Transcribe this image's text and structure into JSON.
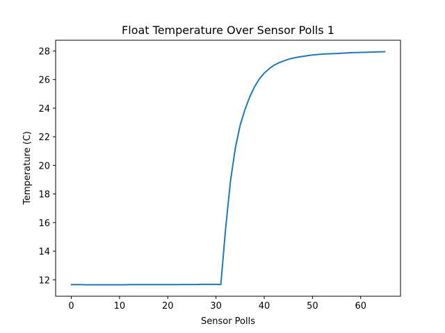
{
  "chart_data": {
    "type": "line",
    "title": "Float Temperature Over Sensor Polls 1",
    "xlabel": "Sensor Polls",
    "ylabel": "Temperature (C)",
    "xlim": [
      -3.25,
      68.25
    ],
    "ylim": [
      10.85,
      28.75
    ],
    "xticks": [
      0,
      10,
      20,
      30,
      40,
      50,
      60
    ],
    "yticks": [
      12,
      14,
      16,
      18,
      20,
      22,
      24,
      26,
      28
    ],
    "xtick_labels": [
      "0",
      "10",
      "20",
      "30",
      "40",
      "50",
      "60"
    ],
    "ytick_labels": [
      "12",
      "14",
      "16",
      "18",
      "20",
      "22",
      "24",
      "26",
      "28"
    ],
    "grid": false,
    "legend": "none",
    "series": [
      {
        "color": "#1f77b4",
        "x": [
          0,
          1,
          2,
          3,
          4,
          5,
          6,
          7,
          8,
          9,
          10,
          11,
          12,
          13,
          14,
          15,
          16,
          17,
          18,
          19,
          20,
          21,
          22,
          23,
          24,
          25,
          26,
          27,
          28,
          29,
          30,
          31,
          32,
          33,
          34,
          35,
          36,
          37,
          38,
          39,
          40,
          41,
          42,
          43,
          44,
          45,
          46,
          47,
          48,
          49,
          50,
          51,
          52,
          53,
          54,
          55,
          56,
          57,
          58,
          59,
          60,
          61,
          62,
          63,
          64,
          65
        ],
        "y": [
          11.66,
          11.66,
          11.66,
          11.65,
          11.65,
          11.65,
          11.65,
          11.65,
          11.65,
          11.65,
          11.65,
          11.65,
          11.66,
          11.66,
          11.66,
          11.66,
          11.66,
          11.66,
          11.66,
          11.66,
          11.66,
          11.66,
          11.66,
          11.67,
          11.67,
          11.67,
          11.67,
          11.68,
          11.68,
          11.68,
          11.68,
          11.67,
          15.6,
          18.9,
          21.2,
          22.8,
          23.9,
          24.8,
          25.5,
          26.05,
          26.45,
          26.75,
          27.0,
          27.17,
          27.3,
          27.42,
          27.5,
          27.57,
          27.62,
          27.67,
          27.72,
          27.75,
          27.78,
          27.8,
          27.81,
          27.82,
          27.84,
          27.86,
          27.88,
          27.89,
          27.9,
          27.91,
          27.92,
          27.93,
          27.94,
          27.95
        ]
      }
    ]
  }
}
